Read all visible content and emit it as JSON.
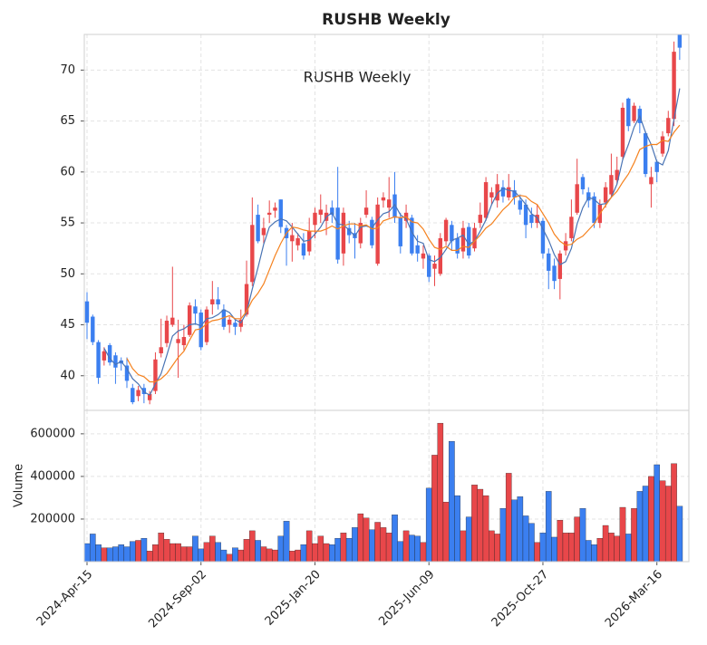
{
  "chart_data": {
    "type": "candlestick",
    "title": "RUSHB  Weekly",
    "annotation": "RUSHB  Weekly",
    "categories": [
      "2024-Apr-15",
      null,
      null,
      null,
      null,
      null,
      null,
      null,
      null,
      null,
      null,
      null,
      null,
      null,
      null,
      null,
      null,
      null,
      null,
      null,
      "2024-Sep-02",
      null,
      null,
      null,
      null,
      null,
      null,
      null,
      null,
      null,
      null,
      null,
      null,
      null,
      null,
      null,
      null,
      null,
      null,
      null,
      "2025-Jan-20",
      null,
      null,
      null,
      null,
      null,
      null,
      null,
      null,
      null,
      null,
      null,
      null,
      null,
      null,
      null,
      null,
      null,
      null,
      null,
      "2025-Jun-09",
      null,
      null,
      null,
      null,
      null,
      null,
      null,
      null,
      null,
      null,
      null,
      null,
      null,
      null,
      null,
      null,
      null,
      null,
      null,
      "2025-Oct-27",
      null,
      null,
      null,
      null,
      null,
      null,
      null,
      null,
      null,
      null,
      null,
      null,
      null,
      null,
      null,
      null,
      null,
      null,
      null,
      "2026-Mar-16",
      null,
      null,
      null,
      null
    ],
    "open": [
      47.3,
      45.8,
      43.3,
      41.5,
      43,
      42,
      41.5,
      41,
      38.8,
      38,
      38.8,
      37.6,
      38.5,
      42.2,
      43.2,
      45,
      43.2,
      43,
      44,
      46.8,
      46.2,
      43.3,
      47,
      47.5,
      46.5,
      45,
      45.2,
      44.8,
      46,
      49.2,
      55.8,
      53.8,
      55.8,
      56.2,
      57.3,
      54.5,
      53.2,
      52.8,
      53,
      52.2,
      54.8,
      55.8,
      55.2,
      56.5,
      56.5,
      52,
      54.5,
      54,
      53,
      55.8,
      55.3,
      51,
      57.2,
      56.5,
      57.8,
      55.5,
      55.2,
      55.5,
      52.8,
      51.5,
      51.8,
      50.5,
      50,
      53.2,
      54.8,
      53.5,
      52.2,
      54.6,
      52.5,
      55,
      55.5,
      57.5,
      57.2,
      58.5,
      57.5,
      58.2,
      57.2,
      56.8,
      55.8,
      55,
      55.2,
      52,
      50.8,
      49.5,
      52.3,
      53.5,
      56,
      59.5,
      58,
      57.6,
      55,
      57,
      57.8,
      59.2,
      61.5,
      67.2,
      65,
      66.2,
      63.8,
      58.8,
      61,
      61.8,
      63.8,
      65.2,
      73.5
    ],
    "high": [
      48.2,
      46,
      43.5,
      42.8,
      43.2,
      42.3,
      41.8,
      41.8,
      39.2,
      39,
      39.2,
      38.5,
      42.3,
      45.6,
      45.9,
      50.7,
      45.5,
      45,
      47.2,
      47.5,
      46.5,
      46.8,
      49.3,
      48.7,
      47,
      45.8,
      45.5,
      46.5,
      51.3,
      57.5,
      56.8,
      55.5,
      57.2,
      57,
      57.3,
      54.8,
      55,
      54,
      54,
      55.5,
      56.5,
      57.8,
      56.8,
      57.2,
      60.5,
      56.5,
      55.2,
      55,
      55.5,
      58.2,
      55.6,
      57.5,
      58,
      59.5,
      60,
      56,
      56.8,
      55.8,
      53.8,
      52.8,
      52,
      51.8,
      54,
      55.5,
      55.2,
      54,
      55.2,
      55,
      55,
      57,
      59.5,
      58.5,
      59.8,
      59.2,
      59.8,
      59.2,
      57.8,
      57.3,
      56.5,
      56.8,
      55.5,
      52.5,
      51.5,
      52.3,
      54,
      57.3,
      61.3,
      59.8,
      58.5,
      58,
      57.3,
      59,
      61.8,
      61.5,
      66.8,
      67.3,
      66.8,
      66.5,
      64,
      60.5,
      61.2,
      64,
      66,
      72.8,
      73.5
    ],
    "low": [
      43.6,
      43,
      39.2,
      41,
      41,
      39.2,
      40.5,
      38.8,
      37.2,
      37.5,
      37.3,
      37.2,
      38.2,
      41.8,
      42.8,
      44.8,
      39.8,
      42.5,
      43.8,
      45,
      42.5,
      43,
      46,
      46.5,
      44.5,
      44.2,
      44,
      44.3,
      45.8,
      48.8,
      53,
      53,
      55,
      55.5,
      54,
      50.8,
      51.2,
      52.3,
      51.4,
      51.8,
      53.5,
      55,
      53.8,
      55,
      51,
      50.8,
      53,
      51.5,
      52.5,
      55.5,
      52.5,
      50.8,
      56.5,
      55.5,
      55,
      52,
      54.5,
      51.8,
      51.2,
      50.5,
      49.2,
      48.8,
      49.8,
      52.8,
      52.3,
      51.5,
      51.5,
      51.5,
      52.2,
      54.5,
      55.2,
      56.8,
      56.5,
      57,
      57.2,
      56.8,
      55.8,
      53.5,
      54.5,
      54.5,
      51.5,
      48.5,
      48.5,
      47.5,
      51.8,
      53.2,
      55.8,
      57.8,
      56.5,
      54.5,
      54.5,
      56.5,
      57.5,
      58.8,
      61.2,
      64,
      64.8,
      63.8,
      59.5,
      56.5,
      59,
      61.5,
      63.5,
      64.5,
      71
    ],
    "close": [
      45.2,
      43.3,
      39.8,
      42.4,
      41.3,
      40.8,
      41.2,
      39.5,
      37.4,
      38.6,
      38.2,
      38.2,
      41.6,
      42.8,
      45.4,
      45.7,
      43.6,
      43.8,
      46.9,
      46.1,
      42.8,
      46.5,
      47.5,
      47,
      44.8,
      45.5,
      44.8,
      45.5,
      49,
      54.8,
      53.2,
      54.5,
      56,
      56.5,
      54.6,
      53.5,
      53.8,
      53.5,
      51.8,
      54.2,
      56,
      56.3,
      56,
      55.8,
      51.4,
      56,
      53.8,
      53.5,
      55,
      56.5,
      52.8,
      56.8,
      57.5,
      57.3,
      55.5,
      52.7,
      56,
      52,
      52,
      52,
      49.7,
      51,
      53.5,
      55.3,
      53.2,
      52,
      54.5,
      51.8,
      54.5,
      55.8,
      59,
      58,
      58.8,
      57.6,
      58.5,
      57.5,
      56.3,
      54.8,
      55,
      55.8,
      52,
      50.3,
      49.3,
      52,
      53.2,
      55.6,
      58.8,
      58.3,
      57.2,
      55,
      56.8,
      58.5,
      59.7,
      60.2,
      66.3,
      64.5,
      66.5,
      64.8,
      59.8,
      59.5,
      60,
      63.5,
      65.3,
      71.8,
      72.2
    ],
    "up_color": "#e8474a",
    "down_color": "#3b7ff0",
    "series": [
      {
        "color": "#4a74b4",
        "values": [
          null,
          null,
          null,
          42.7,
          41.7,
          41.1,
          41.4,
          40.7,
          39.7,
          39.2,
          38.4,
          38.1,
          39.2,
          40.2,
          42,
          43.9,
          44.4,
          44.6,
          45,
          45.1,
          44.9,
          45.6,
          45.7,
          46,
          46.5,
          46.2,
          45.5,
          45.2,
          46.2,
          48.5,
          50.6,
          52.9,
          54.6,
          55.1,
          55.4,
          55.2,
          54.6,
          53.9,
          53.2,
          53.3,
          53.9,
          54.6,
          55.6,
          56,
          54.9,
          54.8,
          54.3,
          53.7,
          54.6,
          54.7,
          54.5,
          55.3,
          55.9,
          56.1,
          56.8,
          55.8,
          55.4,
          54.1,
          53.2,
          53,
          51.4,
          51.2,
          51.6,
          52.4,
          53.3,
          53.5,
          53.8,
          52.9,
          53.2,
          54.2,
          55.3,
          56.8,
          57.9,
          58.4,
          58.2,
          58.1,
          57.5,
          56.8,
          55.9,
          55.5,
          54.4,
          53.3,
          51.9,
          50.9,
          51.2,
          52.5,
          54.9,
          56.5,
          57.5,
          57.3,
          56.8,
          56.9,
          57.5,
          58.8,
          61.2,
          62.7,
          64.4,
          65.5,
          63.9,
          62.7,
          61,
          60.7,
          62.1,
          65.2,
          68.2
        ]
      },
      {
        "color": "#f5821f",
        "values": [
          null,
          null,
          null,
          null,
          null,
          null,
          null,
          41.7,
          40.7,
          40.1,
          39.9,
          39.4,
          39.4,
          39.7,
          40.2,
          41,
          41.8,
          42.4,
          43.5,
          44.5,
          44.6,
          45.1,
          45.4,
          45.5,
          45.7,
          45.9,
          45.6,
          45.6,
          46.3,
          47.4,
          48.1,
          49,
          50.4,
          51.8,
          53,
          54,
          54.6,
          54.5,
          54.3,
          54.2,
          54.2,
          54.2,
          54.4,
          54.7,
          54.4,
          54.7,
          54.9,
          54.9,
          54.7,
          54.8,
          54.4,
          54.5,
          55.2,
          55.4,
          55.6,
          55.5,
          55.6,
          55.1,
          55,
          54.4,
          53.4,
          52.6,
          52.4,
          52.7,
          52.3,
          52.3,
          52.7,
          52.6,
          53.2,
          53.8,
          54.5,
          54.9,
          55.6,
          56.3,
          56.8,
          57.5,
          57.7,
          57.6,
          57.1,
          56.8,
          55.9,
          55,
          53.9,
          53.2,
          52.8,
          52.9,
          53.4,
          53.7,
          54.3,
          54.9,
          55.9,
          56.7,
          57.5,
          58.1,
          59,
          59.8,
          60.9,
          62.2,
          62.5,
          62.7,
          62.7,
          63.1,
          63,
          63.9,
          64.6
        ]
      }
    ],
    "ylim": [
      36.6,
      73.5
    ],
    "yticks": [
      40,
      45,
      50,
      55,
      60,
      65,
      70
    ],
    "grid": true,
    "volume": {
      "label": "Volume",
      "values": [
        85000,
        130000,
        80000,
        65000,
        65000,
        70000,
        80000,
        70000,
        95000,
        100000,
        110000,
        50000,
        80000,
        135000,
        105000,
        85000,
        85000,
        70000,
        70000,
        120000,
        60000,
        90000,
        120000,
        90000,
        55000,
        35000,
        65000,
        55000,
        105000,
        145000,
        100000,
        70000,
        60000,
        55000,
        120000,
        190000,
        50000,
        55000,
        80000,
        145000,
        85000,
        120000,
        85000,
        80000,
        110000,
        135000,
        110000,
        160000,
        225000,
        205000,
        150000,
        185000,
        160000,
        135000,
        220000,
        95000,
        145000,
        125000,
        120000,
        90000,
        345000,
        500000,
        650000,
        280000,
        565000,
        310000,
        145000,
        210000,
        360000,
        340000,
        310000,
        145000,
        130000,
        250000,
        415000,
        290000,
        305000,
        215000,
        180000,
        90000,
        135000,
        330000,
        115000,
        195000,
        135000,
        135000,
        210000,
        250000,
        100000,
        80000,
        110000,
        170000,
        135000,
        120000,
        255000,
        130000,
        250000,
        330000,
        355000,
        400000,
        455000,
        380000,
        355000,
        460000,
        260000
      ],
      "ylim": [
        0,
        710000
      ],
      "yticks": [
        200000,
        400000,
        600000
      ]
    }
  }
}
